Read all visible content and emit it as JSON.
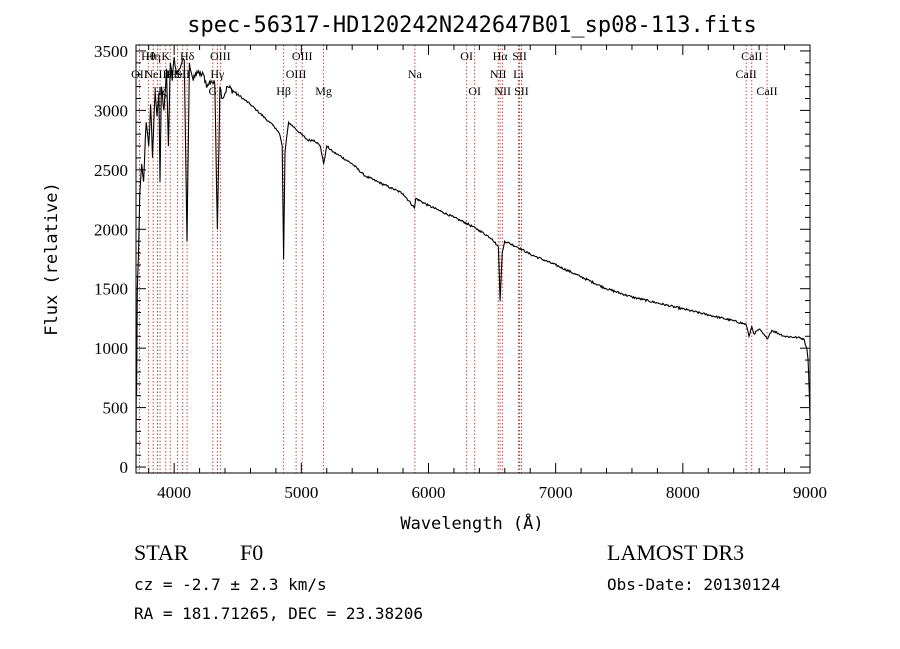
{
  "chart_data": {
    "type": "line",
    "title": "spec-56317-HD120242N242647B01_sp08-113.fits",
    "xlabel": "Wavelength (Å)",
    "ylabel": "Flux (relative)",
    "xlim": [
      3700,
      9000
    ],
    "ylim": [
      -50,
      3550
    ],
    "xticks": [
      4000,
      5000,
      6000,
      7000,
      8000,
      9000
    ],
    "yticks": [
      0,
      500,
      1000,
      1500,
      2000,
      2500,
      3000,
      3500
    ],
    "grid": false,
    "series": [
      {
        "name": "flux",
        "color": "#000000",
        "x": [
          3700,
          3702,
          3705,
          3710,
          3720,
          3730,
          3745,
          3760,
          3780,
          3800,
          3815,
          3830,
          3850,
          3865,
          3880,
          3889,
          3900,
          3920,
          3940,
          3955,
          3970,
          3985,
          4000,
          4020,
          4040,
          4060,
          4080,
          4101,
          4120,
          4150,
          4180,
          4200,
          4230,
          4260,
          4290,
          4320,
          4340,
          4360,
          4380,
          4420,
          4480,
          4540,
          4600,
          4650,
          4700,
          4750,
          4800,
          4830,
          4850,
          4861,
          4872,
          4900,
          4950,
          5000,
          5050,
          5100,
          5150,
          5175,
          5200,
          5250,
          5300,
          5400,
          5500,
          5600,
          5700,
          5800,
          5890,
          5900,
          6000,
          6100,
          6200,
          6300,
          6400,
          6500,
          6550,
          6563,
          6580,
          6600,
          6700,
          6800,
          7000,
          7200,
          7400,
          7600,
          7800,
          8000,
          8200,
          8400,
          8498,
          8520,
          8542,
          8560,
          8600,
          8662,
          8700,
          8800,
          8900,
          8950,
          8975,
          8985,
          8995,
          9000
        ],
        "y": [
          0,
          800,
          600,
          1500,
          1800,
          2300,
          2550,
          2400,
          2900,
          2700,
          3050,
          2600,
          3150,
          2950,
          3150,
          2400,
          3200,
          3000,
          3350,
          2700,
          3400,
          3250,
          3450,
          3300,
          3350,
          3400,
          3420,
          1900,
          3400,
          3250,
          3330,
          3300,
          3300,
          3200,
          3250,
          3220,
          2000,
          3200,
          3100,
          3200,
          3150,
          3100,
          3050,
          3000,
          2950,
          2900,
          2850,
          2800,
          2700,
          1750,
          2650,
          2900,
          2850,
          2800,
          2750,
          2750,
          2700,
          2550,
          2700,
          2650,
          2620,
          2550,
          2450,
          2400,
          2350,
          2300,
          2180,
          2260,
          2200,
          2150,
          2100,
          2050,
          1990,
          1920,
          1850,
          1400,
          1800,
          1900,
          1850,
          1790,
          1700,
          1600,
          1500,
          1430,
          1380,
          1330,
          1280,
          1230,
          1200,
          1100,
          1180,
          1120,
          1160,
          1080,
          1150,
          1100,
          1090,
          1080,
          1000,
          900,
          600,
          400
        ],
        "ylim": [
          -50,
          3550
        ]
      }
    ],
    "line_labels": [
      {
        "wl": 3727,
        "label": "OII",
        "row": 1
      },
      {
        "wl": 3797,
        "label": "Hθ",
        "row": 0
      },
      {
        "wl": 3835,
        "label": "Hη",
        "row": 0
      },
      {
        "wl": 3869,
        "label": "NeIII",
        "row": 1
      },
      {
        "wl": 3889,
        "label": "Hζ",
        "row": 2
      },
      {
        "wl": 3934,
        "label": "K",
        "row": 0
      },
      {
        "wl": 3969,
        "label": "H",
        "row": 1
      },
      {
        "wl": 4026,
        "label": "HeI",
        "row": 1
      },
      {
        "wl": 4068,
        "label": "SII",
        "row": 1
      },
      {
        "wl": 4102,
        "label": "Hδ",
        "row": 0
      },
      {
        "wl": 4304,
        "label": "G",
        "row": 2
      },
      {
        "wl": 4340,
        "label": "Hγ",
        "row": 1
      },
      {
        "wl": 4363,
        "label": "OIII",
        "row": 0
      },
      {
        "wl": 4861,
        "label": "Hβ",
        "row": 2
      },
      {
        "wl": 4959,
        "label": "OIII",
        "row": 1
      },
      {
        "wl": 5007,
        "label": "OIII",
        "row": 0
      },
      {
        "wl": 5175,
        "label": "Mg",
        "row": 2
      },
      {
        "wl": 5893,
        "label": "Na",
        "row": 1
      },
      {
        "wl": 6300,
        "label": "OI",
        "row": 0
      },
      {
        "wl": 6363,
        "label": "OI",
        "row": 2
      },
      {
        "wl": 6548,
        "label": "NII",
        "row": 1
      },
      {
        "wl": 6563,
        "label": "Hα",
        "row": 0
      },
      {
        "wl": 6583,
        "label": "NII",
        "row": 2
      },
      {
        "wl": 6707,
        "label": "Li",
        "row": 1
      },
      {
        "wl": 6716,
        "label": "SII",
        "row": 0
      },
      {
        "wl": 6731,
        "label": "SII",
        "row": 2
      },
      {
        "wl": 8498,
        "label": "CaII",
        "row": 1
      },
      {
        "wl": 8542,
        "label": "CaII",
        "row": 0
      },
      {
        "wl": 8662,
        "label": "CaII",
        "row": 2
      }
    ]
  },
  "info": {
    "object_class": "STAR",
    "subclass": "F0",
    "survey": "LAMOST DR3",
    "redshift": "cz = -2.7 ± 2.3 km/s",
    "obs_date": "Obs-Date: 20130124",
    "coords": "RA = 181.71265, DEC =  23.38206"
  }
}
